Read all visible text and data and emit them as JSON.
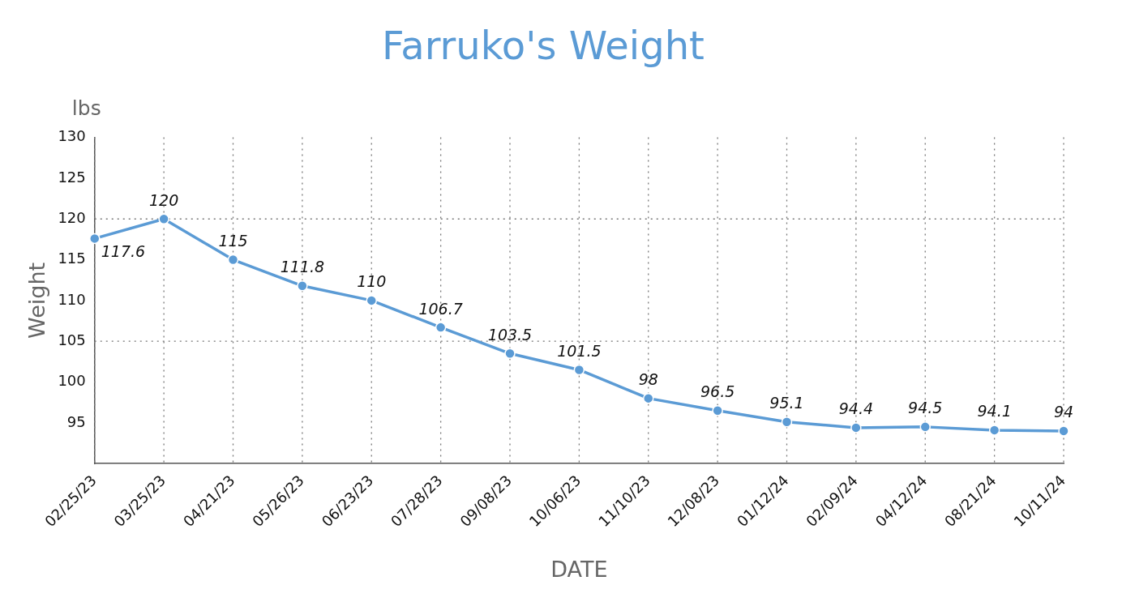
{
  "chart_data": {
    "type": "line",
    "title": "Farruko's Weight",
    "xlabel": "DATE",
    "ylabel": "Weight",
    "annotations": [
      "lbs"
    ],
    "categories": [
      "02/25/23",
      "03/25/23",
      "04/21/23",
      "05/26/23",
      "06/23/23",
      "07/28/23",
      "09/08/23",
      "10/06/23",
      "11/10/23",
      "12/08/23",
      "01/12/24",
      "02/09/24",
      "04/12/24",
      "08/21/24",
      "10/11/24"
    ],
    "values": [
      117.6,
      120,
      115,
      111.8,
      110,
      106.7,
      103.5,
      101.5,
      98,
      96.5,
      95.1,
      94.4,
      94.5,
      94.1,
      94
    ],
    "color": "#5b9bd5",
    "ylim": [
      90,
      130
    ],
    "yticks": [
      95,
      100,
      105,
      110,
      115,
      120,
      125,
      130
    ],
    "grid": "x",
    "marker": "circle",
    "line_style": "solid",
    "data_labels": true,
    "legend": false,
    "ref_lines": [
      {
        "axis": "y",
        "value": 120,
        "line_style": "dotted"
      },
      {
        "axis": "y",
        "value": 105,
        "line_style": "dotted"
      }
    ]
  }
}
